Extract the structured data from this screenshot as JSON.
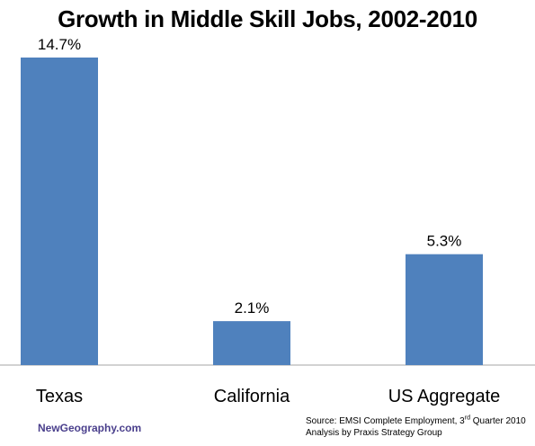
{
  "chart_data": {
    "type": "bar",
    "title": "Growth in Middle Skill Jobs, 2002-2010",
    "categories": [
      "Texas",
      "California",
      "US Aggregate"
    ],
    "values": [
      14.7,
      2.1,
      5.3
    ],
    "data_labels": [
      "14.7%",
      "2.1%",
      "5.3%"
    ],
    "xlabel": "",
    "ylabel": "",
    "ylim": [
      0,
      15
    ],
    "grid": false,
    "legend": "none",
    "bar_color": "#4f81bd"
  },
  "footer": {
    "brand": "NewGeography.com",
    "source_line1_pre": "Source: EMSI Complete Employment, 3",
    "source_line1_sup": "rd",
    "source_line1_post": " Quarter 2010",
    "source_line2": "Analysis by Praxis Strategy Group"
  }
}
